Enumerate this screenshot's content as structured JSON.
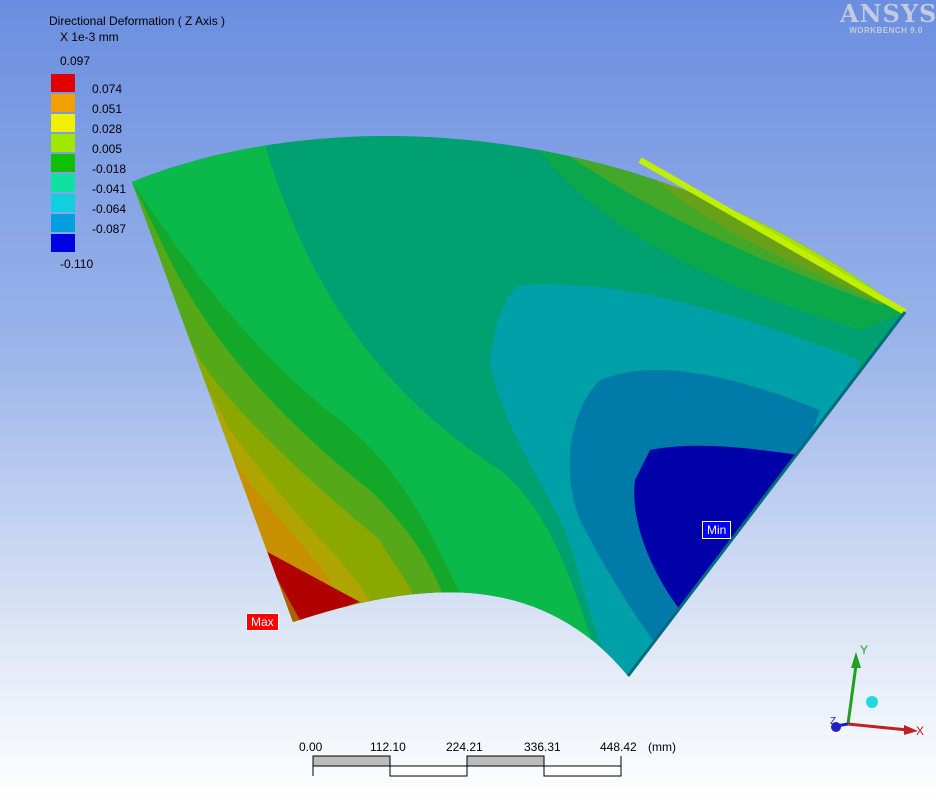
{
  "legend": {
    "title": "Directional Deformation ( Z Axis )",
    "units": "X 1e-3 mm",
    "max_value": "0.097",
    "min_value": "-0.110",
    "levels": [
      {
        "label": "0.074",
        "color": "#e00000"
      },
      {
        "label": "0.051",
        "color": "#f0a000"
      },
      {
        "label": "0.028",
        "color": "#f0f000"
      },
      {
        "label": "0.005",
        "color": "#a0e800"
      },
      {
        "label": "-0.018",
        "color": "#10c000"
      },
      {
        "label": "-0.041",
        "color": "#10e0a0"
      },
      {
        "label": "-0.064",
        "color": "#10d0e0"
      },
      {
        "label": "-0.087",
        "color": "#00a0e0"
      },
      {
        "label": "",
        "color": "#0000e0"
      }
    ]
  },
  "logo": {
    "main": "ANSYS",
    "sub": "WORKBENCH 9.0"
  },
  "probes": {
    "max_label": "Max",
    "min_label": "Min"
  },
  "scale_bar": {
    "ticks": [
      "0.00",
      "112.10",
      "224.21",
      "336.31",
      "448.42"
    ],
    "unit": "(mm)"
  },
  "triad": {
    "x": "X",
    "y": "Y",
    "z": "Z"
  }
}
